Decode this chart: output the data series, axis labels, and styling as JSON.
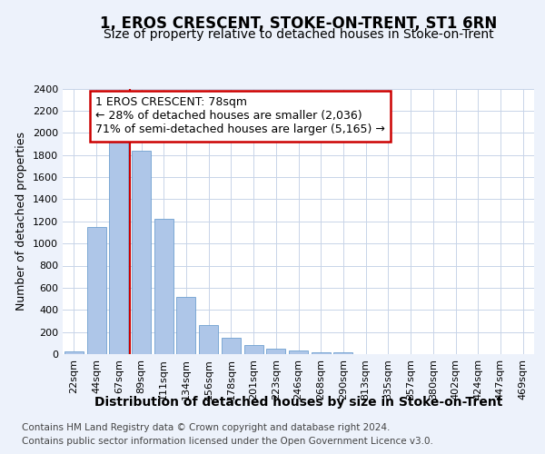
{
  "title": "1, EROS CRESCENT, STOKE-ON-TRENT, ST1 6RN",
  "subtitle": "Size of property relative to detached houses in Stoke-on-Trent",
  "xlabel": "Distribution of detached houses by size in Stoke-on-Trent",
  "ylabel": "Number of detached properties",
  "annotation_line1": "1 EROS CRESCENT: 78sqm",
  "annotation_line2": "← 28% of detached houses are smaller (2,036)",
  "annotation_line3": "71% of semi-detached houses are larger (5,165) →",
  "footer_line1": "Contains HM Land Registry data © Crown copyright and database right 2024.",
  "footer_line2": "Contains public sector information licensed under the Open Government Licence v3.0.",
  "categories": [
    "22sqm",
    "44sqm",
    "67sqm",
    "89sqm",
    "111sqm",
    "134sqm",
    "156sqm",
    "178sqm",
    "201sqm",
    "223sqm",
    "246sqm",
    "268sqm",
    "290sqm",
    "313sqm",
    "335sqm",
    "357sqm",
    "380sqm",
    "402sqm",
    "424sqm",
    "447sqm",
    "469sqm"
  ],
  "values": [
    28,
    1150,
    1950,
    1840,
    1220,
    520,
    265,
    150,
    80,
    50,
    35,
    20,
    15,
    0,
    0,
    0,
    0,
    0,
    0,
    0,
    0
  ],
  "bar_color": "#aec6e8",
  "bar_edge_color": "#6fa0d0",
  "vline_x_index": 2,
  "vline_color": "#cc0000",
  "ylim": [
    0,
    2400
  ],
  "yticks": [
    0,
    200,
    400,
    600,
    800,
    1000,
    1200,
    1400,
    1600,
    1800,
    2000,
    2200,
    2400
  ],
  "background_color": "#edf2fb",
  "plot_bg_color": "#ffffff",
  "grid_color": "#c8d4e8",
  "title_fontsize": 12,
  "subtitle_fontsize": 10,
  "ylabel_fontsize": 9,
  "xlabel_fontsize": 10,
  "annotation_fontsize": 9,
  "footer_fontsize": 7.5,
  "tick_fontsize": 8
}
